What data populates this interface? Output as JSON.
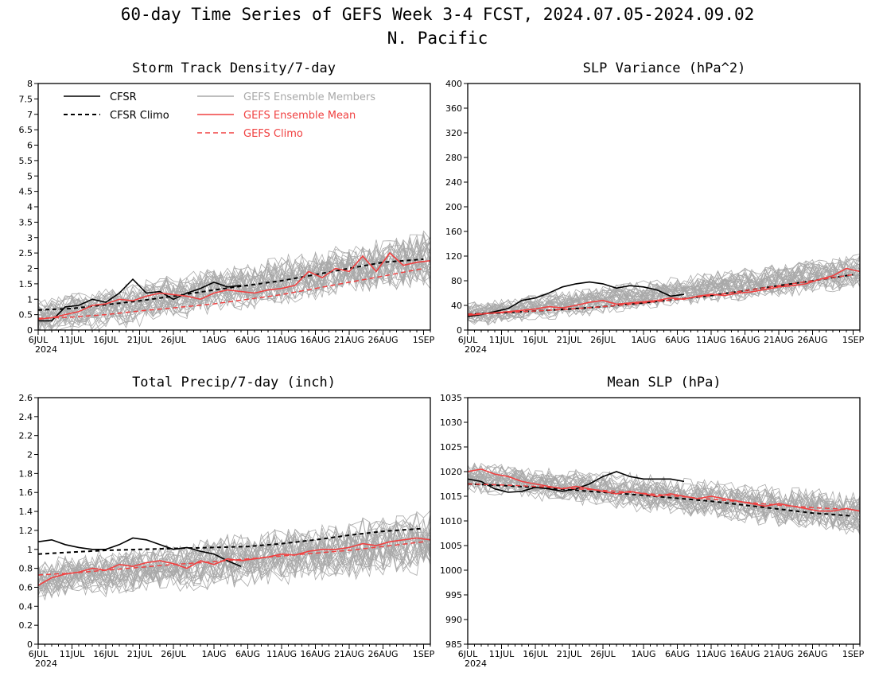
{
  "title": {
    "line1": "60-day Time Series of GEFS Week 3-4 FCST, 2024.07.05-2024.09.02",
    "line2": "N. Pacific"
  },
  "colors": {
    "cfsr": "#000000",
    "members": "#a9a9a9",
    "gefs_mean": "#f04040",
    "gefs_climo": "#f04040"
  },
  "legend": {
    "cfsr": "CFSR",
    "cfsr_climo": "CFSR Climo",
    "members": "GEFS Ensemble Members",
    "gefs_mean": "GEFS Ensemble Mean",
    "gefs_climo": "GEFS Climo"
  },
  "x_axis": {
    "year": "2024",
    "tick_labels": [
      "6JUL",
      "11JUL",
      "16JUL",
      "21JUL",
      "26JUL",
      "1AUG",
      "6AUG",
      "11AUG",
      "16AUG",
      "21AUG",
      "26AUG",
      "1SEP"
    ],
    "tick_days": [
      0,
      5,
      10,
      15,
      20,
      26,
      31,
      36,
      41,
      46,
      51,
      57
    ],
    "xlim": [
      0,
      58
    ]
  },
  "chart_data": [
    {
      "type": "line",
      "title": "Storm Track Density/7-day",
      "xlim": [
        0,
        58
      ],
      "ylim": [
        0,
        8
      ],
      "yticks": [
        "0",
        "0.5",
        "1",
        "1.5",
        "2",
        "2.5",
        "3",
        "3.5",
        "4",
        "4.5",
        "5",
        "5.5",
        "6",
        "6.5",
        "7",
        "7.5",
        "8"
      ],
      "legend_position": "top-left",
      "members_band": {
        "center_start": 0.35,
        "center_end": 2.3,
        "spread": 0.9,
        "count": 30
      },
      "series": [
        {
          "name": "CFSR",
          "x": [
            0,
            2,
            4,
            6,
            8,
            10,
            12,
            14,
            16,
            18,
            20,
            22,
            24,
            26,
            28,
            30
          ],
          "y": [
            0.3,
            0.3,
            0.75,
            0.8,
            1.0,
            0.9,
            1.2,
            1.65,
            1.2,
            1.25,
            1.0,
            1.2,
            1.35,
            1.55,
            1.4,
            1.45
          ]
        },
        {
          "name": "CFSR Climo",
          "x": [
            0,
            5,
            10,
            15,
            20,
            26,
            31,
            36,
            41,
            46,
            51,
            57
          ],
          "y": [
            0.65,
            0.7,
            0.82,
            0.95,
            1.1,
            1.3,
            1.45,
            1.6,
            1.8,
            2.0,
            2.2,
            2.3
          ]
        },
        {
          "name": "GEFS Ensemble Mean",
          "x": [
            0,
            2,
            4,
            6,
            8,
            10,
            12,
            14,
            16,
            18,
            20,
            22,
            24,
            26,
            28,
            30,
            32,
            34,
            36,
            38,
            40,
            42,
            44,
            46,
            48,
            50,
            52,
            54,
            56,
            58
          ],
          "y": [
            0.35,
            0.4,
            0.5,
            0.6,
            0.8,
            0.85,
            1.0,
            0.95,
            1.1,
            1.2,
            1.15,
            1.1,
            1.0,
            1.2,
            1.3,
            1.25,
            1.2,
            1.3,
            1.35,
            1.45,
            1.9,
            1.7,
            2.0,
            1.9,
            2.4,
            1.9,
            2.5,
            2.1,
            2.2,
            2.25
          ]
        },
        {
          "name": "GEFS Climo",
          "x": [
            0,
            5,
            10,
            15,
            20,
            26,
            31,
            36,
            41,
            46,
            51,
            57
          ],
          "y": [
            0.38,
            0.42,
            0.5,
            0.62,
            0.72,
            0.85,
            1.0,
            1.15,
            1.35,
            1.55,
            1.75,
            2.0
          ]
        }
      ]
    },
    {
      "type": "line",
      "title": "SLP Variance (hPa^2)",
      "xlim": [
        0,
        58
      ],
      "ylim": [
        0,
        400
      ],
      "yticks": [
        "0",
        "40",
        "80",
        "120",
        "160",
        "200",
        "240",
        "280",
        "320",
        "360",
        "400"
      ],
      "members_band": {
        "center_start": 25,
        "center_end": 95,
        "spread": 28,
        "count": 30
      },
      "series": [
        {
          "name": "CFSR",
          "x": [
            0,
            2,
            4,
            6,
            8,
            10,
            12,
            14,
            16,
            18,
            20,
            22,
            24,
            26,
            28,
            30,
            32
          ],
          "y": [
            22,
            25,
            30,
            35,
            48,
            52,
            60,
            70,
            75,
            78,
            75,
            68,
            72,
            70,
            65,
            55,
            58
          ]
        },
        {
          "name": "CFSR Climo",
          "x": [
            0,
            5,
            10,
            15,
            20,
            26,
            31,
            36,
            41,
            46,
            51,
            57
          ],
          "y": [
            26,
            28,
            31,
            34,
            38,
            44,
            50,
            56,
            64,
            72,
            80,
            90
          ]
        },
        {
          "name": "GEFS Ensemble Mean",
          "x": [
            0,
            2,
            4,
            6,
            8,
            10,
            12,
            14,
            16,
            18,
            20,
            22,
            24,
            26,
            28,
            30,
            32,
            34,
            36,
            38,
            40,
            42,
            44,
            46,
            48,
            50,
            52,
            54,
            56,
            58
          ],
          "y": [
            24,
            26,
            28,
            30,
            32,
            34,
            38,
            36,
            40,
            45,
            48,
            42,
            44,
            46,
            48,
            52,
            50,
            55,
            58,
            56,
            60,
            62,
            66,
            70,
            72,
            75,
            82,
            88,
            100,
            95
          ]
        },
        {
          "name": "GEFS Climo",
          "x": [
            0,
            5,
            10,
            15,
            20,
            26,
            31,
            36,
            41,
            46,
            51,
            57
          ],
          "y": [
            26,
            28,
            31,
            34,
            38,
            44,
            50,
            56,
            64,
            72,
            80,
            90
          ]
        }
      ]
    },
    {
      "type": "line",
      "title": "Total Precip/7-day (inch)",
      "xlim": [
        0,
        58
      ],
      "ylim": [
        0,
        2.6
      ],
      "yticks": [
        "0",
        "0.2",
        "0.4",
        "0.6",
        "0.8",
        "1",
        "1.2",
        "1.4",
        "1.6",
        "1.8",
        "2",
        "2.2",
        "2.4",
        "2.6"
      ],
      "members_band": {
        "center_start": 0.68,
        "center_end": 1.08,
        "spread": 0.32,
        "count": 30
      },
      "series": [
        {
          "name": "CFSR",
          "x": [
            0,
            2,
            4,
            6,
            8,
            10,
            12,
            14,
            16,
            18,
            20,
            22,
            24,
            26,
            28,
            30
          ],
          "y": [
            1.08,
            1.1,
            1.05,
            1.02,
            1.0,
            1.0,
            1.05,
            1.12,
            1.1,
            1.05,
            1.0,
            1.02,
            0.98,
            0.95,
            0.88,
            0.82
          ]
        },
        {
          "name": "CFSR Climo",
          "x": [
            0,
            5,
            10,
            15,
            20,
            26,
            31,
            36,
            41,
            46,
            51,
            57
          ],
          "y": [
            0.95,
            0.97,
            0.99,
            1.0,
            1.01,
            1.02,
            1.03,
            1.06,
            1.1,
            1.15,
            1.19,
            1.22
          ]
        },
        {
          "name": "GEFS Ensemble Mean",
          "x": [
            0,
            2,
            4,
            6,
            8,
            10,
            12,
            14,
            16,
            18,
            20,
            22,
            24,
            26,
            28,
            30,
            32,
            34,
            36,
            38,
            40,
            42,
            44,
            46,
            48,
            50,
            52,
            54,
            56,
            58
          ],
          "y": [
            0.62,
            0.7,
            0.74,
            0.76,
            0.8,
            0.78,
            0.84,
            0.82,
            0.86,
            0.88,
            0.85,
            0.8,
            0.88,
            0.84,
            0.9,
            0.88,
            0.9,
            0.92,
            0.95,
            0.94,
            0.98,
            1.0,
            1.0,
            1.02,
            1.06,
            1.04,
            1.08,
            1.1,
            1.12,
            1.1
          ]
        },
        {
          "name": "GEFS Climo",
          "x": [
            0,
            5,
            10,
            15,
            20,
            26,
            31,
            36,
            41,
            46,
            51,
            57
          ],
          "y": [
            0.73,
            0.75,
            0.78,
            0.81,
            0.84,
            0.87,
            0.9,
            0.93,
            0.96,
            0.99,
            1.03,
            1.08
          ]
        }
      ]
    },
    {
      "type": "line",
      "title": "Mean SLP (hPa)",
      "xlim": [
        0,
        58
      ],
      "ylim": [
        985,
        1035
      ],
      "yticks": [
        "985",
        "990",
        "995",
        "1000",
        "1005",
        "1010",
        "1015",
        "1020",
        "1025",
        "1030",
        "1035"
      ],
      "members_band": {
        "center_start": 1019,
        "center_end": 1011.5,
        "spread": 4.5,
        "count": 30
      },
      "series": [
        {
          "name": "CFSR",
          "x": [
            0,
            2,
            4,
            6,
            8,
            10,
            12,
            14,
            16,
            18,
            20,
            22,
            24,
            26,
            28,
            30,
            32
          ],
          "y": [
            1018.5,
            1018,
            1016.5,
            1015.8,
            1016,
            1016.8,
            1016.5,
            1016,
            1016.5,
            1017.5,
            1019,
            1020,
            1019,
            1018.5,
            1018.5,
            1018.5,
            1018
          ]
        },
        {
          "name": "CFSR Climo",
          "x": [
            0,
            5,
            10,
            15,
            20,
            26,
            31,
            36,
            41,
            46,
            51,
            57
          ],
          "y": [
            1017.5,
            1017.2,
            1016.8,
            1016.3,
            1015.8,
            1015.2,
            1014.6,
            1014.0,
            1013.2,
            1012.4,
            1011.6,
            1011.0
          ]
        },
        {
          "name": "GEFS Ensemble Mean",
          "x": [
            0,
            2,
            4,
            6,
            8,
            10,
            12,
            14,
            16,
            18,
            20,
            22,
            24,
            26,
            28,
            30,
            32,
            34,
            36,
            38,
            40,
            42,
            44,
            46,
            48,
            50,
            52,
            54,
            56,
            58
          ],
          "y": [
            1020,
            1020.5,
            1019.5,
            1019,
            1018,
            1017.5,
            1017,
            1016.5,
            1017,
            1016.5,
            1016,
            1015.5,
            1016,
            1015.5,
            1015,
            1015.5,
            1015,
            1014.5,
            1015,
            1014.5,
            1014,
            1013.5,
            1013,
            1013.5,
            1013,
            1012.5,
            1012,
            1012,
            1012.5,
            1012
          ]
        },
        {
          "name": "GEFS Climo",
          "x": [
            0,
            5,
            10,
            15,
            20,
            26,
            31,
            36,
            41,
            46,
            51,
            57
          ],
          "y": [
            1017.5,
            1017.3,
            1017,
            1016.6,
            1016.2,
            1015.6,
            1015,
            1014.4,
            1013.8,
            1013.2,
            1012.7,
            1012.3
          ]
        }
      ]
    }
  ]
}
